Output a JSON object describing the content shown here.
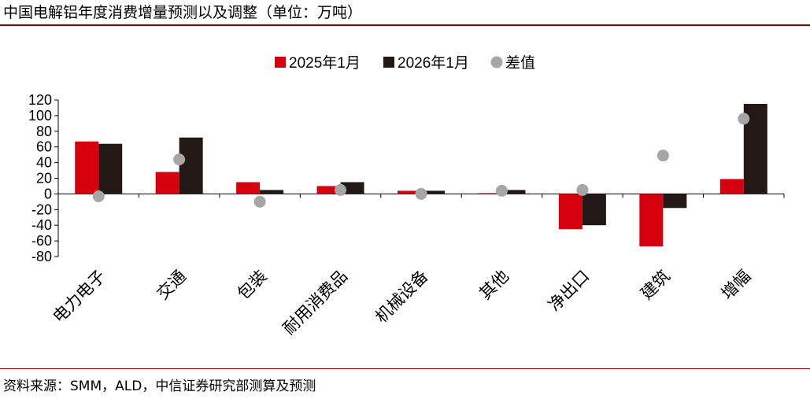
{
  "title": "中国电解铝年度消费增量预测以及调整（单位：万吨）",
  "source": "资料来源：SMM，ALD，中信证券研究部测算及预测",
  "colors": {
    "series1": "#d7000f",
    "series2": "#231815",
    "diff": "#a6a6a6",
    "rule": "#8b0000"
  },
  "chart_data": {
    "type": "bar",
    "categories": [
      "电力电子",
      "交通",
      "包装",
      "耐用消费品",
      "机械设备",
      "其他",
      "净出口",
      "建筑",
      "增幅"
    ],
    "series": [
      {
        "name": "2025年1月",
        "kind": "bar",
        "values": [
          67,
          28,
          15,
          10,
          4,
          1,
          -45,
          -67,
          19
        ]
      },
      {
        "name": "2026年1月",
        "kind": "bar",
        "values": [
          64,
          72,
          5,
          15,
          4,
          5,
          -40,
          -18,
          115
        ]
      },
      {
        "name": "差值",
        "kind": "scatter",
        "values": [
          -3,
          44,
          -10,
          5,
          0,
          4,
          5,
          49,
          96
        ]
      }
    ],
    "yticks": [
      120,
      100,
      80,
      60,
      40,
      20,
      0,
      -20,
      -40,
      -60,
      -80
    ],
    "ylim": [
      -80,
      120
    ],
    "legend": "top-center"
  }
}
